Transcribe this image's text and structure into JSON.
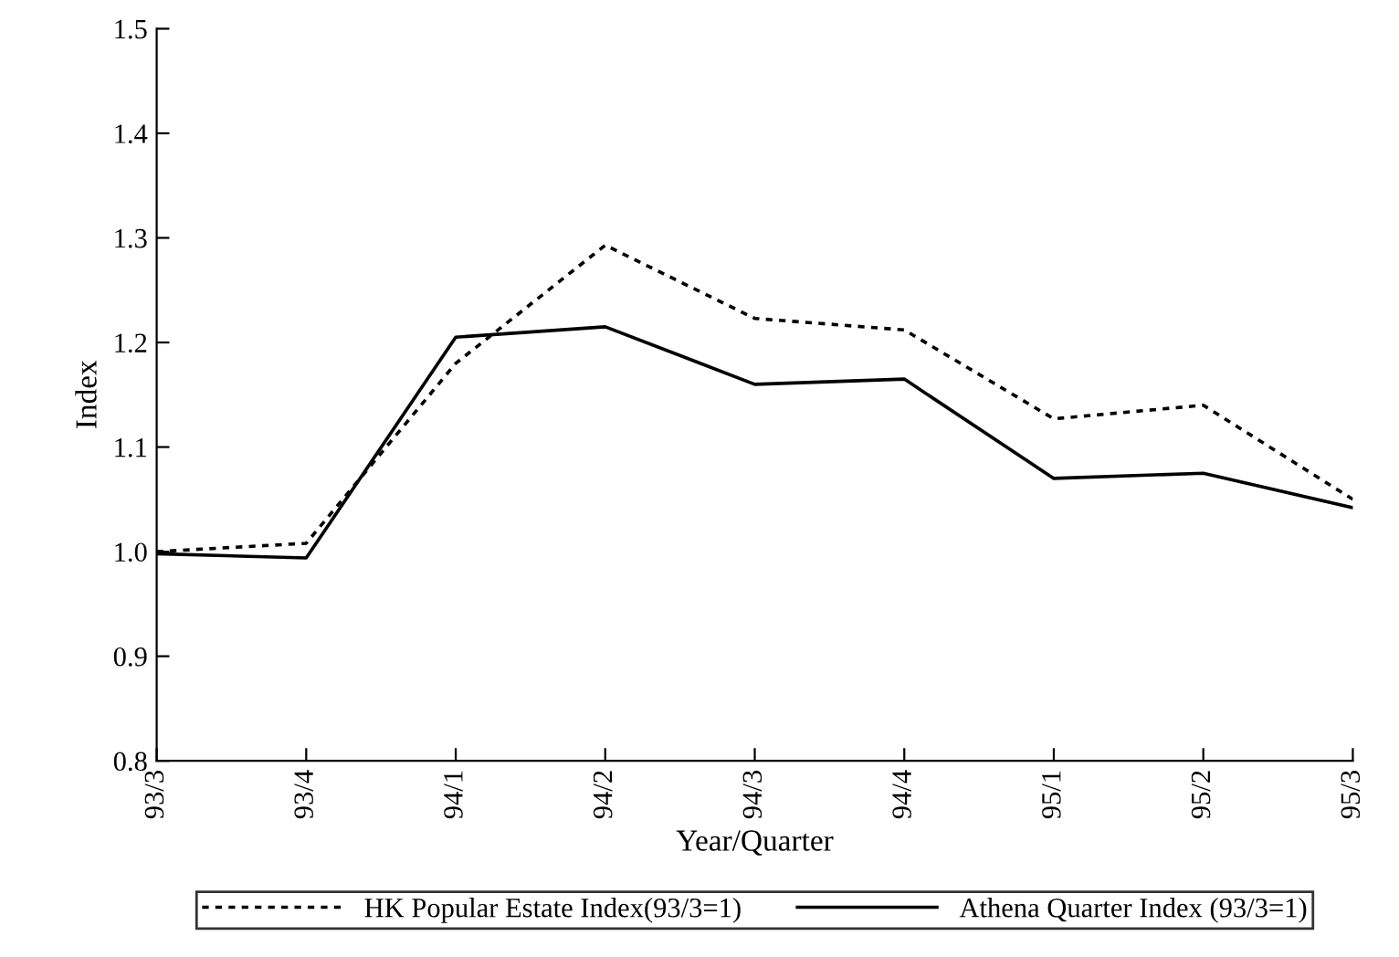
{
  "chart_data": {
    "type": "line",
    "xlabel": "Year/Quarter",
    "ylabel": "Index",
    "categories": [
      "93/3",
      "93/4",
      "94/1",
      "94/2",
      "94/3",
      "94/4",
      "95/1",
      "95/2",
      "95/3"
    ],
    "series": [
      {
        "name": "HK Popular Estate Index(93/3=1)",
        "color": "#000000",
        "line_style": "dotted",
        "values": [
          1.0,
          1.008,
          1.18,
          1.293,
          1.223,
          1.212,
          1.127,
          1.14,
          1.05
        ]
      },
      {
        "name": "Athena Quarter Index (93/3=1)",
        "color": "#000000",
        "line_style": "solid",
        "values": [
          0.998,
          0.994,
          1.205,
          1.215,
          1.16,
          1.165,
          1.07,
          1.075,
          1.042
        ]
      }
    ],
    "ylim": [
      0.8,
      1.5
    ],
    "yticks": [
      {
        "value": 0.8,
        "label": "0.8"
      },
      {
        "value": 0.9,
        "label": "0.9"
      },
      {
        "value": 1.0,
        "label": "1.0"
      },
      {
        "value": 1.1,
        "label": "1.1"
      },
      {
        "value": 1.2,
        "label": "1.2"
      },
      {
        "value": 1.3,
        "label": "1.3"
      },
      {
        "value": 1.4,
        "label": "1.4"
      },
      {
        "value": 1.5,
        "label": "1.5"
      }
    ],
    "grid": false,
    "legend": "bottom",
    "marker": "none"
  }
}
